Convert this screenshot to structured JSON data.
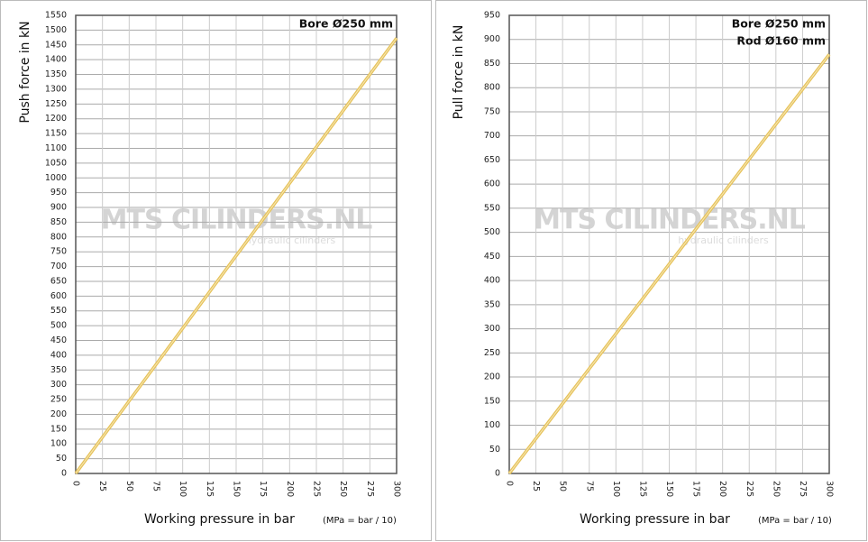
{
  "chart_data": [
    {
      "type": "line",
      "ylabel": "Push force in kN",
      "xlabel": "Working pressure in bar",
      "xlabel_note": "(MPa = bar / 10)",
      "annotations": [
        "Bore Ø250 mm"
      ],
      "watermark": "MTS CILINDERS.NL",
      "watermark_sub": "hydraulic cilinders",
      "x": [
        0,
        300
      ],
      "series": [
        {
          "color": "#e6c25a",
          "values": [
            0,
            1473
          ]
        }
      ],
      "xlim": [
        0,
        300
      ],
      "xticks": [
        0,
        25,
        50,
        75,
        100,
        125,
        150,
        175,
        200,
        225,
        250,
        275,
        300
      ],
      "ylim": [
        0,
        1550
      ],
      "yticks": [
        0,
        50,
        100,
        150,
        200,
        250,
        300,
        350,
        400,
        450,
        500,
        550,
        600,
        650,
        700,
        750,
        800,
        850,
        900,
        950,
        1000,
        1050,
        1100,
        1150,
        1200,
        1250,
        1300,
        1350,
        1400,
        1450,
        1500,
        1550
      ],
      "grid": true
    },
    {
      "type": "line",
      "ylabel": "Pull force in kN",
      "xlabel": "Working pressure in bar",
      "xlabel_note": "(MPa = bar / 10)",
      "annotations": [
        "Bore Ø250 mm",
        "Rod Ø160 mm"
      ],
      "watermark": "MTS CILINDERS.NL",
      "watermark_sub": "hydraulic cilinders",
      "x": [
        0,
        300
      ],
      "series": [
        {
          "color": "#e6c25a",
          "values": [
            0,
            869
          ]
        }
      ],
      "xlim": [
        0,
        300
      ],
      "xticks": [
        0,
        25,
        50,
        75,
        100,
        125,
        150,
        175,
        200,
        225,
        250,
        275,
        300
      ],
      "ylim": [
        0,
        950
      ],
      "yticks": [
        0,
        50,
        100,
        150,
        200,
        250,
        300,
        350,
        400,
        450,
        500,
        550,
        600,
        650,
        700,
        750,
        800,
        850,
        900,
        950
      ],
      "grid": true
    }
  ]
}
